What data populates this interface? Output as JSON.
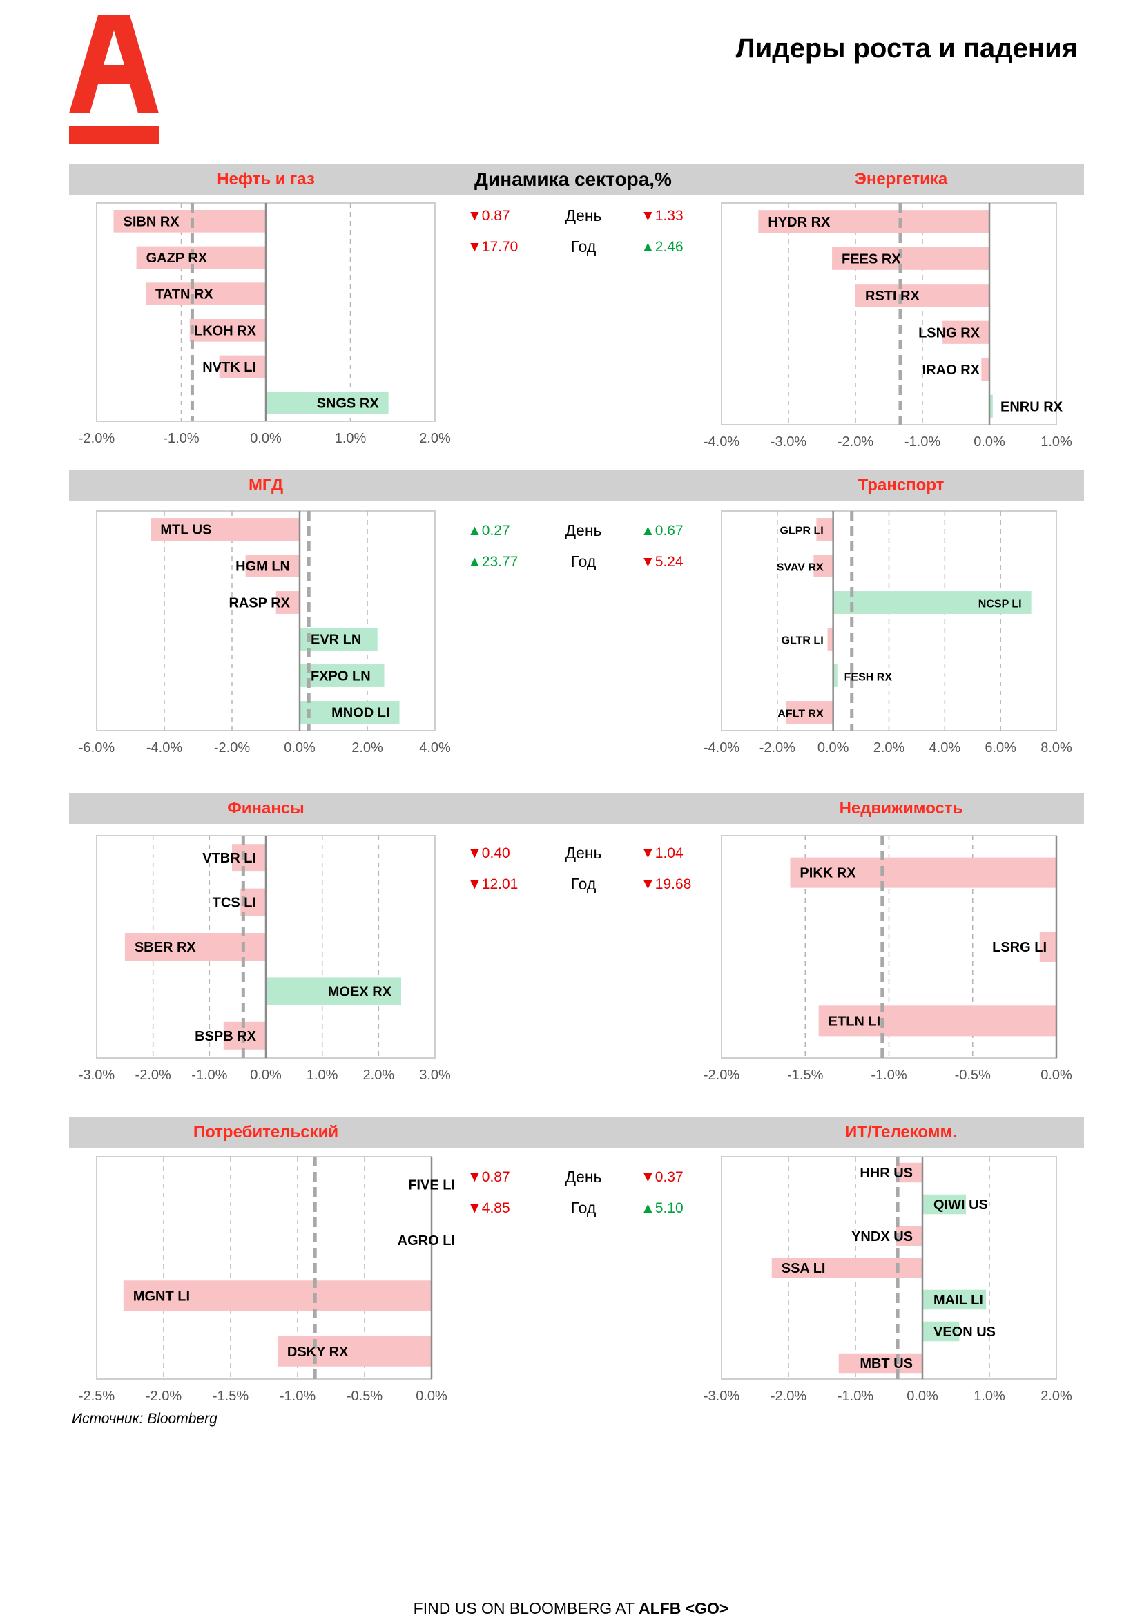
{
  "page": {
    "title": "Лидеры роста и падения",
    "dynamics_title": "Динамика сектора,%",
    "source": "Источник: Bloomberg",
    "footer_prefix": "FIND US ON BLOOMBERG AT",
    "footer_code": "ALFB <GO>",
    "brand_color": "#ef3124"
  },
  "colors": {
    "negative_bar": "#f9c3c5",
    "positive_bar": "#b6e9cd",
    "header_bg": "#d0d0d0",
    "header_text": "#ff2b1f",
    "stat_up": "#00a23c",
    "stat_down": "#e60000"
  },
  "stats": [
    {
      "left": {
        "arrow": "▼",
        "value": "0.87",
        "dir": "down"
      },
      "day_label": "День",
      "right": {
        "arrow": "▼",
        "value": "1.33",
        "dir": "down"
      },
      "left2": {
        "arrow": "▼",
        "value": "17.70",
        "dir": "down"
      },
      "year_label": "Год",
      "right2": {
        "arrow": "▲",
        "value": "2.46",
        "dir": "up"
      }
    },
    {
      "left": {
        "arrow": "▲",
        "value": "0.27",
        "dir": "up"
      },
      "day_label": "День",
      "right": {
        "arrow": "▲",
        "value": "0.67",
        "dir": "up"
      },
      "left2": {
        "arrow": "▲",
        "value": "23.77",
        "dir": "up"
      },
      "year_label": "Год",
      "right2": {
        "arrow": "▼",
        "value": "5.24",
        "dir": "down"
      }
    },
    {
      "left": {
        "arrow": "▼",
        "value": "0.40",
        "dir": "down"
      },
      "day_label": "День",
      "right": {
        "arrow": "▼",
        "value": "1.04",
        "dir": "down"
      },
      "left2": {
        "arrow": "▼",
        "value": "12.01",
        "dir": "down"
      },
      "year_label": "Год",
      "right2": {
        "arrow": "▼",
        "value": "19.68",
        "dir": "down"
      }
    },
    {
      "left": {
        "arrow": "▼",
        "value": "0.87",
        "dir": "down"
      },
      "day_label": "День",
      "right": {
        "arrow": "▼",
        "value": "0.37",
        "dir": "down"
      },
      "left2": {
        "arrow": "▼",
        "value": "4.85",
        "dir": "down"
      },
      "year_label": "Год",
      "right2": {
        "arrow": "▲",
        "value": "5.10",
        "dir": "up"
      }
    }
  ],
  "chart_data": [
    {
      "type": "bar",
      "orientation": "horizontal",
      "title": "Нефть и газ",
      "categories": [
        "SIBN RX",
        "GAZP RX",
        "TATN RX",
        "LKOH RX",
        "NVTK LI",
        "SNGS RX"
      ],
      "values": [
        -1.8,
        -1.53,
        -1.42,
        -0.9,
        -0.55,
        1.45
      ],
      "xlim": [
        -2.0,
        2.0
      ],
      "ticks": [
        -2.0,
        -1.0,
        0.0,
        1.0,
        2.0
      ],
      "tick_labels": [
        "-2.0%",
        "-1.0%",
        "0.0%",
        "1.0%",
        "2.0%"
      ],
      "sector_change": -0.87
    },
    {
      "type": "bar",
      "orientation": "horizontal",
      "title": "Энергетика",
      "categories": [
        "HYDR RX",
        "FEES RX",
        "RSTI RX",
        "LSNG RX",
        "IRAO RX",
        "ENRU RX"
      ],
      "values": [
        -3.45,
        -2.35,
        -2.0,
        -0.7,
        -0.12,
        0.05
      ],
      "xlim": [
        -4.0,
        1.0
      ],
      "ticks": [
        -4.0,
        -3.0,
        -2.0,
        -1.0,
        0.0,
        1.0
      ],
      "tick_labels": [
        "-4.0%",
        "-3.0%",
        "-2.0%",
        "-1.0%",
        "0.0%",
        "1.0%"
      ],
      "sector_change": -1.33
    },
    {
      "type": "bar",
      "orientation": "horizontal",
      "title": "МГД",
      "categories": [
        "MTL US",
        "HGM LN",
        "RASP RX",
        "EVR LN",
        "FXPO LN",
        "MNOD LI"
      ],
      "values": [
        -4.4,
        -1.6,
        -0.7,
        2.3,
        2.5,
        2.95
      ],
      "xlim": [
        -6.0,
        4.0
      ],
      "ticks": [
        -6.0,
        -4.0,
        -2.0,
        0.0,
        2.0,
        4.0
      ],
      "tick_labels": [
        "-6.0%",
        "-4.0%",
        "-2.0%",
        "0.0%",
        "2.0%",
        "4.0%"
      ],
      "sector_change": 0.27
    },
    {
      "type": "bar",
      "orientation": "horizontal",
      "title": "Транспорт",
      "categories": [
        "GLPR LI",
        "SVAV RX",
        "NCSP LI",
        "GLTR LI",
        "FESH RX",
        "AFLT RX"
      ],
      "values": [
        -0.6,
        -0.7,
        7.1,
        -0.2,
        0.15,
        -1.7
      ],
      "xlim": [
        -4.0,
        8.0
      ],
      "ticks": [
        -4.0,
        -2.0,
        0.0,
        2.0,
        4.0,
        6.0,
        8.0
      ],
      "tick_labels": [
        "-4.0%",
        "-2.0%",
        "0.0%",
        "2.0%",
        "4.0%",
        "6.0%",
        "8.0%"
      ],
      "sector_change": 0.67
    },
    {
      "type": "bar",
      "orientation": "horizontal",
      "title": "Финансы",
      "categories": [
        "VTBR LI",
        "TCS LI",
        "SBER RX",
        "MOEX RX",
        "BSPB RX"
      ],
      "values": [
        -0.6,
        -0.45,
        -2.5,
        2.4,
        -0.75
      ],
      "xlim": [
        -3.0,
        3.0
      ],
      "ticks": [
        -3.0,
        -2.0,
        -1.0,
        0.0,
        1.0,
        2.0,
        3.0
      ],
      "tick_labels": [
        "-3.0%",
        "-2.0%",
        "-1.0%",
        "0.0%",
        "1.0%",
        "2.0%",
        "3.0%"
      ],
      "sector_change": -0.4
    },
    {
      "type": "bar",
      "orientation": "horizontal",
      "title": "Недвижимость",
      "categories": [
        "PIKK RX",
        "LSRG LI",
        "ETLN LI"
      ],
      "values": [
        -1.59,
        -0.1,
        -1.42
      ],
      "xlim": [
        -2.0,
        0.0
      ],
      "ticks": [
        -2.0,
        -1.5,
        -1.0,
        -0.5,
        0.0
      ],
      "tick_labels": [
        "-2.0%",
        "-1.5%",
        "-1.0%",
        "-0.5%",
        "0.0%"
      ],
      "sector_change": -1.04
    },
    {
      "type": "bar",
      "orientation": "horizontal",
      "title": "Потребительский",
      "categories": [
        "FIVE LI",
        "AGRO LI",
        "MGNT LI",
        "DSKY RX"
      ],
      "values": [
        0.0,
        0.0,
        -2.3,
        -1.15
      ],
      "xlim": [
        -2.5,
        0.0
      ],
      "ticks": [
        -2.5,
        -2.0,
        -1.5,
        -1.0,
        -0.5,
        0.0
      ],
      "tick_labels": [
        "-2.5%",
        "-2.0%",
        "-1.5%",
        "-1.0%",
        "-0.5%",
        "0.0%"
      ],
      "sector_change": -0.87
    },
    {
      "type": "bar",
      "orientation": "horizontal",
      "title": "ИТ/Телекомм.",
      "categories": [
        "HHR US",
        "QIWI US",
        "YNDX US",
        "SSA LI",
        "MAIL LI",
        "VEON US",
        "MBT US"
      ],
      "values": [
        -0.4,
        0.65,
        -0.4,
        -2.25,
        0.95,
        0.55,
        -1.25
      ],
      "xlim": [
        -3.0,
        2.0
      ],
      "ticks": [
        -3.0,
        -2.0,
        -1.0,
        0.0,
        1.0,
        2.0
      ],
      "tick_labels": [
        "-3.0%",
        "-2.0%",
        "-1.0%",
        "0.0%",
        "1.0%",
        "2.0%"
      ],
      "sector_change": -0.37
    }
  ]
}
